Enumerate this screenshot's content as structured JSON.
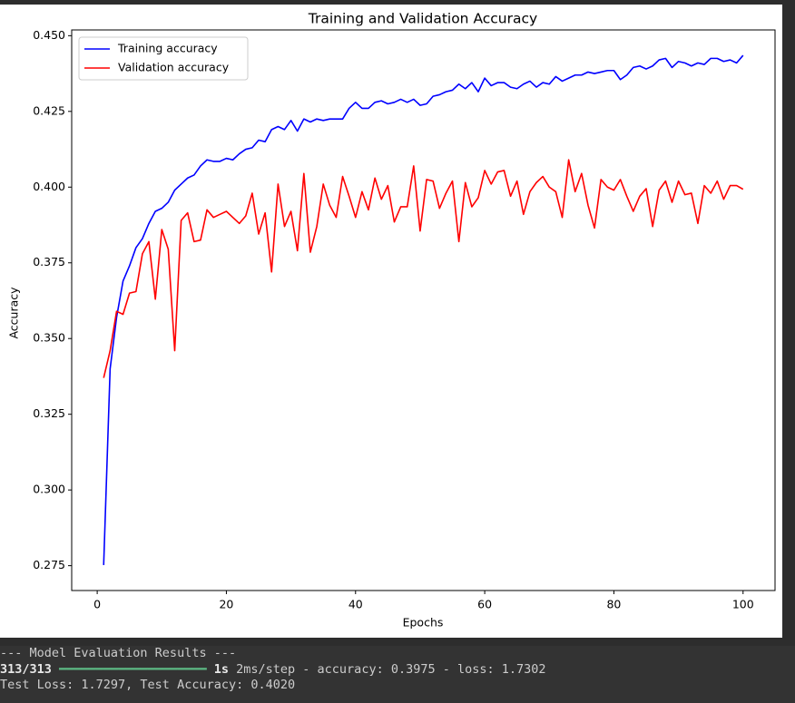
{
  "chart_data": {
    "type": "line",
    "title": "Training and Validation Accuracy",
    "xlabel": "Epochs",
    "ylabel": "Accuracy",
    "x": [
      1,
      2,
      3,
      4,
      5,
      6,
      7,
      8,
      9,
      10,
      11,
      12,
      13,
      14,
      15,
      16,
      17,
      18,
      19,
      20,
      21,
      22,
      23,
      24,
      25,
      26,
      27,
      28,
      29,
      30,
      31,
      32,
      33,
      34,
      35,
      36,
      37,
      38,
      39,
      40,
      41,
      42,
      43,
      44,
      45,
      46,
      47,
      48,
      49,
      50,
      51,
      52,
      53,
      54,
      55,
      56,
      57,
      58,
      59,
      60,
      61,
      62,
      63,
      64,
      65,
      66,
      67,
      68,
      69,
      70,
      71,
      72,
      73,
      74,
      75,
      76,
      77,
      78,
      79,
      80,
      81,
      82,
      83,
      84,
      85,
      86,
      87,
      88,
      89,
      90,
      91,
      92,
      93,
      94,
      95,
      96,
      97,
      98,
      99,
      100
    ],
    "series": [
      {
        "name": "Training accuracy",
        "color": "#0000ff",
        "values": [
          0.2752,
          0.34,
          0.357,
          0.369,
          0.374,
          0.38,
          0.383,
          0.388,
          0.392,
          0.393,
          0.395,
          0.399,
          0.401,
          0.403,
          0.404,
          0.407,
          0.409,
          0.4085,
          0.4085,
          0.4095,
          0.409,
          0.411,
          0.4125,
          0.413,
          0.4155,
          0.415,
          0.419,
          0.42,
          0.419,
          0.422,
          0.4185,
          0.4225,
          0.4215,
          0.4225,
          0.422,
          0.4225,
          0.4225,
          0.4225,
          0.426,
          0.428,
          0.426,
          0.426,
          0.428,
          0.4285,
          0.4275,
          0.428,
          0.429,
          0.428,
          0.429,
          0.427,
          0.4275,
          0.43,
          0.4305,
          0.4315,
          0.432,
          0.434,
          0.4325,
          0.4345,
          0.4315,
          0.436,
          0.4335,
          0.4345,
          0.4345,
          0.433,
          0.4325,
          0.434,
          0.435,
          0.433,
          0.4345,
          0.434,
          0.4365,
          0.435,
          0.436,
          0.437,
          0.437,
          0.438,
          0.4375,
          0.438,
          0.4385,
          0.4385,
          0.4355,
          0.437,
          0.4395,
          0.44,
          0.439,
          0.44,
          0.442,
          0.4425,
          0.4395,
          0.4415,
          0.441,
          0.44,
          0.441,
          0.4405,
          0.4425,
          0.4425,
          0.4415,
          0.442,
          0.441,
          0.4435
        ]
      },
      {
        "name": "Validation accuracy",
        "color": "#ff0000",
        "values": [
          0.337,
          0.346,
          0.359,
          0.358,
          0.365,
          0.3655,
          0.378,
          0.382,
          0.363,
          0.386,
          0.3795,
          0.346,
          0.389,
          0.3915,
          0.382,
          0.3825,
          0.3925,
          0.39,
          0.391,
          0.392,
          0.39,
          0.388,
          0.3905,
          0.398,
          0.3845,
          0.3915,
          0.372,
          0.401,
          0.387,
          0.392,
          0.379,
          0.4045,
          0.3785,
          0.387,
          0.401,
          0.394,
          0.39,
          0.4035,
          0.397,
          0.39,
          0.3985,
          0.3925,
          0.403,
          0.396,
          0.4005,
          0.3885,
          0.3935,
          0.3935,
          0.407,
          0.3855,
          0.4025,
          0.402,
          0.393,
          0.398,
          0.402,
          0.382,
          0.4015,
          0.3935,
          0.3965,
          0.4055,
          0.401,
          0.405,
          0.4055,
          0.397,
          0.402,
          0.391,
          0.3985,
          0.4015,
          0.4035,
          0.4,
          0.3985,
          0.39,
          0.409,
          0.3985,
          0.4045,
          0.394,
          0.3865,
          0.4025,
          0.4,
          0.399,
          0.4025,
          0.397,
          0.392,
          0.397,
          0.3995,
          0.387,
          0.399,
          0.402,
          0.395,
          0.402,
          0.3975,
          0.398,
          0.388,
          0.4005,
          0.398,
          0.402,
          0.396,
          0.4005,
          0.4005,
          0.3993
        ]
      }
    ],
    "xlim": [
      -3.95,
      104.95
    ],
    "ylim": [
      0.2668,
      0.4519
    ],
    "xticks": [
      0,
      20,
      40,
      60,
      80,
      100
    ],
    "yticks": [
      {
        "value": 0.275,
        "label": "0.275"
      },
      {
        "value": 0.3,
        "label": "0.300"
      },
      {
        "value": 0.325,
        "label": "0.325"
      },
      {
        "value": 0.35,
        "label": "0.350"
      },
      {
        "value": 0.375,
        "label": "0.375"
      },
      {
        "value": 0.4,
        "label": "0.400"
      },
      {
        "value": 0.425,
        "label": "0.425"
      },
      {
        "value": 0.45,
        "label": "0.450"
      }
    ],
    "legend": "upper left",
    "grid": false
  },
  "console": {
    "header": "--- Model Evaluation Results ---",
    "steps": "313/313",
    "bar": "━━━━━━━━━━━━━━━━━━━━",
    "time": "1s",
    "metrics": " 2ms/step - accuracy: 0.3975 - loss: 1.7302",
    "result": "Test Loss: 1.7297, Test Accuracy: 0.4020"
  }
}
